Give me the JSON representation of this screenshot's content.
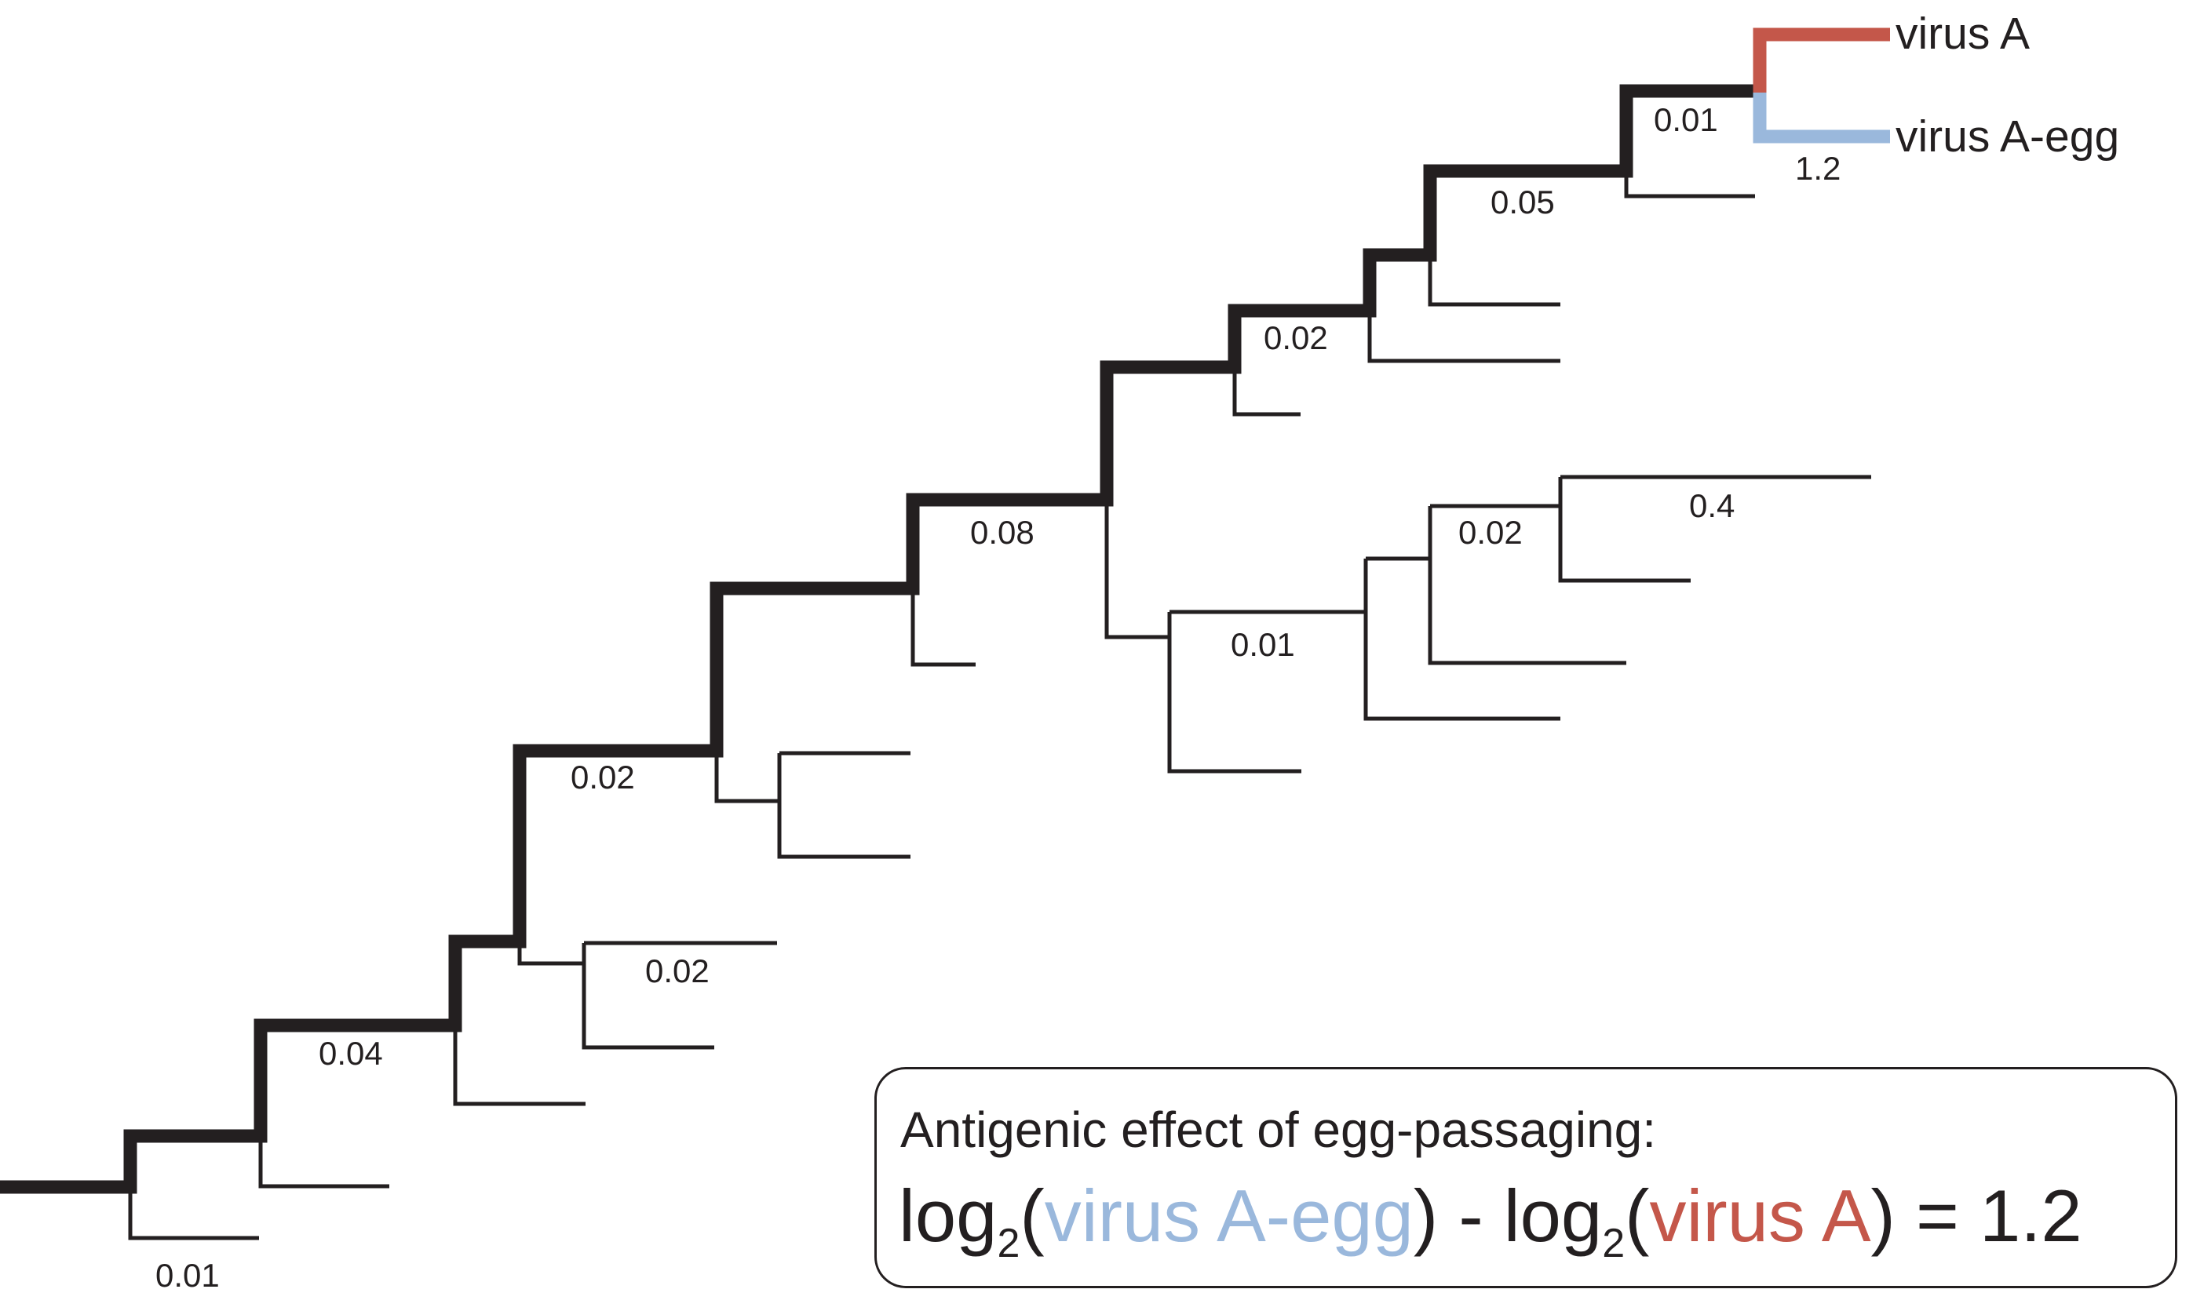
{
  "colors": {
    "trunk": "#231f20",
    "virus_a": "#c4574a",
    "virus_a_egg": "#9ab8dc"
  },
  "tips": {
    "virus_a": "virus A",
    "virus_a_egg": "virus A-egg"
  },
  "branch_labels": {
    "root": "0.01",
    "n2": "0.04",
    "n4": "0.02",
    "n5": "0.02",
    "n7": "0.08",
    "n8": "0.02",
    "top": "0.05",
    "pre_split": "0.01",
    "egg": "1.2",
    "c1": "0.01",
    "c2": "0.02",
    "c3": "0.4"
  },
  "formula": {
    "heading": "Antigenic effect of egg-passaging:",
    "log": "log",
    "base": "2",
    "open": "(",
    "term1": "virus A-egg",
    "minus": ") - ",
    "term2": "virus A",
    "result": ") = 1.2"
  }
}
